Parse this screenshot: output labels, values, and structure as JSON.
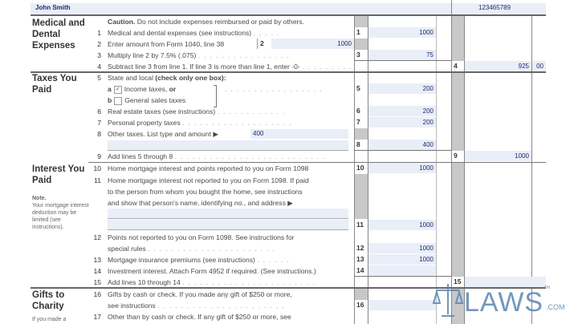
{
  "header": {
    "name": "John Smith",
    "ssn": "123465789"
  },
  "sections": {
    "medical": "Medical and Dental Expenses",
    "taxes": "Taxes You Paid",
    "interest": "Interest You Paid",
    "interest_note_title": "Note.",
    "interest_note": "Your mortgage interest deduction may be limited (see instructions).",
    "gifts": "Gifts to Charity",
    "gifts_note": "If you made a"
  },
  "lines": {
    "caption_bold": "Caution.",
    "caption": "Do not include expenses reimbursed or paid by others.",
    "l1": "Medical and dental expenses (see instructions)",
    "l2": "Enter amount from Form 1040, line 38",
    "l3": "Multiply line 2 by 7.5% (.075)",
    "l4": "Subtract line 3 from line 1. If line 3 is more than line 1, enter -0-",
    "l5": "State and local",
    "l5b": "(check only one box):",
    "l5a_letter": "a",
    "l5a": "Income taxes,",
    "l5a_or": "or",
    "l5b_letter": "b",
    "l5b_text": "General sales taxes",
    "l6": "Real estate taxes (see instructions)",
    "l7": "Personal property taxes",
    "l8": "Other taxes. List type and amount ▶",
    "l9": "Add lines 5 through 8",
    "l10": "Home mortgage interest and points reported to you on Form 1098",
    "l11a": "Home mortgage interest not reported to you on Form 1098. If paid",
    "l11b": "to the person from whom you bought the home, see instructions",
    "l11c": "and show that person's name, identifying no., and address ▶",
    "l12a": "Points not reported to you on Form 1098. See instructions for",
    "l12b": "special rules",
    "l13": "Mortgage insurance premiums (see instructions)",
    "l14": "Investment interest. Attach Form 4952 if required. (See instructions.)",
    "l15": "Add lines 10 through 14",
    "l16a": "Gifts by cash or check. If you made any gift of $250 or more,",
    "l16b": "see instructions",
    "l17": "Other than by cash or check. If any gift of $250 or more, see"
  },
  "values": {
    "l1": "1000",
    "l2": "1000",
    "l3": "75",
    "l4": "925",
    "l4_cents": "00",
    "l5": "200",
    "l6": "200",
    "l7": "200",
    "l8_inline": "400",
    "l8": "400",
    "l9": "1000",
    "l10": "1000",
    "l11": "1000",
    "l12": "1000",
    "l13": "1000",
    "l14": "",
    "l15": "",
    "l16": ""
  },
  "checkboxes": {
    "income_taxes": true,
    "general_sales_taxes": false
  },
  "check_mark": "✓",
  "logo": {
    "text": "LAWS",
    "suffix": ".COM",
    "tm": "TM"
  },
  "colors": {
    "field_fill": "#e9eef8",
    "value_text": "#1c2b6b",
    "logo": "#5a86b5"
  }
}
